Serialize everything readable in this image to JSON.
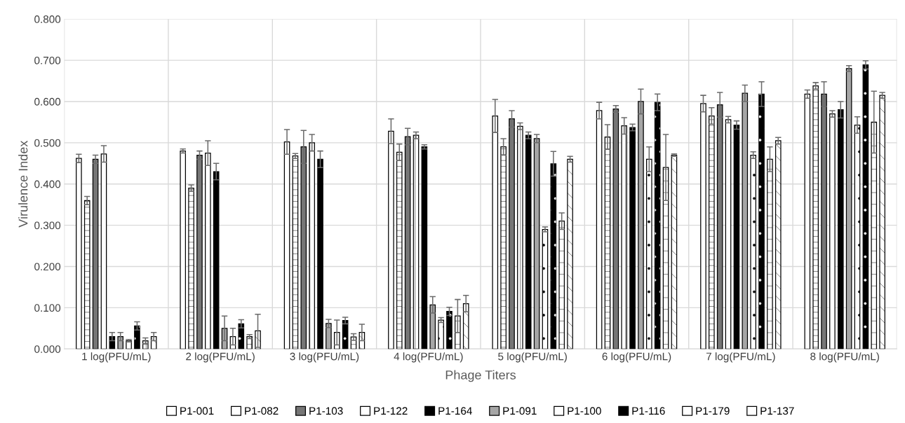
{
  "chart_data": {
    "type": "bar",
    "xlabel": "Phage Titers",
    "ylabel": "Virulence Index",
    "categories": [
      "1 log(PFU/mL)",
      "2 log(PFU/mL)",
      "3 log(PFU/mL)",
      "4 log(PFU/mL)",
      "5 log(PFU/mL)",
      "6 log(PFU/mL)",
      "7 log(PFU/mL)",
      "8 log(PFU/mL)"
    ],
    "series": [
      {
        "name": "P1-001",
        "color": "#ffffff",
        "values": [
          0.462,
          0.48,
          0.502,
          0.528,
          0.565,
          0.578,
          0.595,
          0.618
        ],
        "errors": [
          0.01,
          0.005,
          0.03,
          0.03,
          0.04,
          0.02,
          0.02,
          0.01
        ]
      },
      {
        "name": "P1-082",
        "color": "#ffffff",
        "values": [
          0.36,
          0.39,
          0.468,
          0.477,
          0.49,
          0.514,
          0.565,
          0.638
        ],
        "errors": [
          0.01,
          0.008,
          0.006,
          0.02,
          0.02,
          0.03,
          0.02,
          0.008
        ]
      },
      {
        "name": "P1-103",
        "color": "#767676",
        "values": [
          0.46,
          0.47,
          0.49,
          0.515,
          0.558,
          0.582,
          0.592,
          0.618
        ],
        "errors": [
          0.01,
          0.01,
          0.04,
          0.02,
          0.02,
          0.008,
          0.03,
          0.03
        ]
      },
      {
        "name": "P1-122",
        "color": "#ffffff",
        "values": [
          0.473,
          0.475,
          0.5,
          0.518,
          0.54,
          0.541,
          0.556,
          0.57
        ],
        "errors": [
          0.02,
          0.03,
          0.02,
          0.008,
          0.008,
          0.02,
          0.008,
          0.008
        ]
      },
      {
        "name": "P1-164",
        "color": "#000000",
        "values": [
          0.03,
          0.43,
          0.46,
          0.49,
          0.518,
          0.537,
          0.543,
          0.58
        ],
        "errors": [
          0.01,
          0.02,
          0.02,
          0.005,
          0.008,
          0.008,
          0.01,
          0.02
        ]
      },
      {
        "name": "P1-091",
        "color": "#a6a6a6",
        "values": [
          0.03,
          0.05,
          0.062,
          0.107,
          0.51,
          0.6,
          0.62,
          0.68
        ],
        "errors": [
          0.01,
          0.03,
          0.01,
          0.02,
          0.01,
          0.03,
          0.02,
          0.007
        ]
      },
      {
        "name": "P1-100",
        "color": "#ffffff",
        "values": [
          0.02,
          0.03,
          0.04,
          0.07,
          0.29,
          0.46,
          0.47,
          0.543
        ],
        "errors": [
          0.003,
          0.02,
          0.03,
          0.006,
          0.006,
          0.03,
          0.008,
          0.02
        ]
      },
      {
        "name": "P1-116",
        "color": "#000000",
        "values": [
          0.056,
          0.061,
          0.069,
          0.091,
          0.449,
          0.598,
          0.618,
          0.689
        ],
        "errors": [
          0.01,
          0.01,
          0.008,
          0.01,
          0.03,
          0.02,
          0.03,
          0.01
        ]
      },
      {
        "name": "P1-179",
        "color": "#ffffff",
        "values": [
          0.02,
          0.03,
          0.029,
          0.08,
          0.31,
          0.44,
          0.46,
          0.55
        ],
        "errors": [
          0.007,
          0.005,
          0.008,
          0.04,
          0.02,
          0.08,
          0.03,
          0.075
        ]
      },
      {
        "name": "P1-137",
        "color": "#ffffff",
        "values": [
          0.03,
          0.044,
          0.04,
          0.11,
          0.46,
          0.47,
          0.505,
          0.615
        ],
        "errors": [
          0.01,
          0.04,
          0.02,
          0.02,
          0.007,
          0.003,
          0.008,
          0.007
        ]
      }
    ],
    "ylim": [
      0,
      0.8
    ],
    "yticks": [
      {
        "value": 0,
        "label": "0.000"
      },
      {
        "value": 0.1,
        "label": "0.100"
      },
      {
        "value": 0.2,
        "label": "0.200"
      },
      {
        "value": 0.3,
        "label": "0.300"
      },
      {
        "value": 0.4,
        "label": "0.400"
      },
      {
        "value": 0.5,
        "label": "0.500"
      },
      {
        "value": 0.6,
        "label": "0.600"
      },
      {
        "value": 0.7,
        "label": "0.700"
      },
      {
        "value": 0.8,
        "label": "0.800"
      }
    ],
    "grid": true,
    "legend": "bottom"
  }
}
